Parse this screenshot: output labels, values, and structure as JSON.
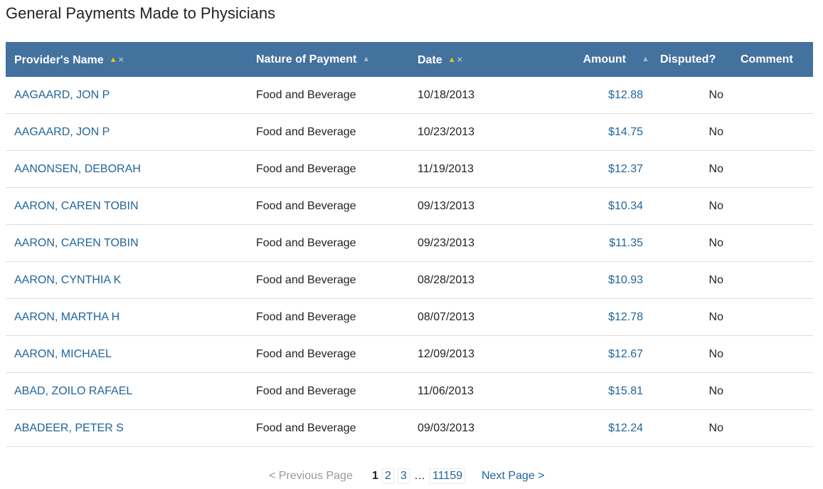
{
  "page": {
    "title": "General Payments Made to Physicians"
  },
  "table": {
    "headers": {
      "provider_name": "Provider's Name",
      "nature": "Nature of Payment",
      "date": "Date",
      "amount": "Amount",
      "disputed": "Disputed?",
      "comment": "Comment"
    },
    "sort_icons": {
      "up": "▲",
      "remove": "×"
    },
    "rows": [
      {
        "name": "AAGAARD, JON P",
        "nature": "Food and Beverage",
        "date": "10/18/2013",
        "amount": "$12.88",
        "disputed": "No",
        "comment": ""
      },
      {
        "name": "AAGAARD, JON P",
        "nature": "Food and Beverage",
        "date": "10/23/2013",
        "amount": "$14.75",
        "disputed": "No",
        "comment": ""
      },
      {
        "name": "AANONSEN, DEBORAH",
        "nature": "Food and Beverage",
        "date": "11/19/2013",
        "amount": "$12.37",
        "disputed": "No",
        "comment": ""
      },
      {
        "name": "AARON, CAREN TOBIN",
        "nature": "Food and Beverage",
        "date": "09/13/2013",
        "amount": "$10.34",
        "disputed": "No",
        "comment": ""
      },
      {
        "name": "AARON, CAREN TOBIN",
        "nature": "Food and Beverage",
        "date": "09/23/2013",
        "amount": "$11.35",
        "disputed": "No",
        "comment": ""
      },
      {
        "name": "AARON, CYNTHIA K",
        "nature": "Food and Beverage",
        "date": "08/28/2013",
        "amount": "$10.93",
        "disputed": "No",
        "comment": ""
      },
      {
        "name": "AARON, MARTHA H",
        "nature": "Food and Beverage",
        "date": "08/07/2013",
        "amount": "$12.78",
        "disputed": "No",
        "comment": ""
      },
      {
        "name": "AARON, MICHAEL",
        "nature": "Food and Beverage",
        "date": "12/09/2013",
        "amount": "$12.67",
        "disputed": "No",
        "comment": ""
      },
      {
        "name": "ABAD, ZOILO RAFAEL",
        "nature": "Food and Beverage",
        "date": "11/06/2013",
        "amount": "$15.81",
        "disputed": "No",
        "comment": ""
      },
      {
        "name": "ABADEER, PETER S",
        "nature": "Food and Beverage",
        "date": "09/03/2013",
        "amount": "$12.24",
        "disputed": "No",
        "comment": ""
      }
    ]
  },
  "pagination": {
    "previous_label": "< Previous Page",
    "current_page": "1",
    "page_2": "2",
    "page_3": "3",
    "ellipsis": "…",
    "last_page": "11159",
    "next_label": "Next Page >"
  },
  "colors": {
    "header_bg": "#44729f",
    "link": "#21659b",
    "sort_active": "#f1c40f"
  }
}
